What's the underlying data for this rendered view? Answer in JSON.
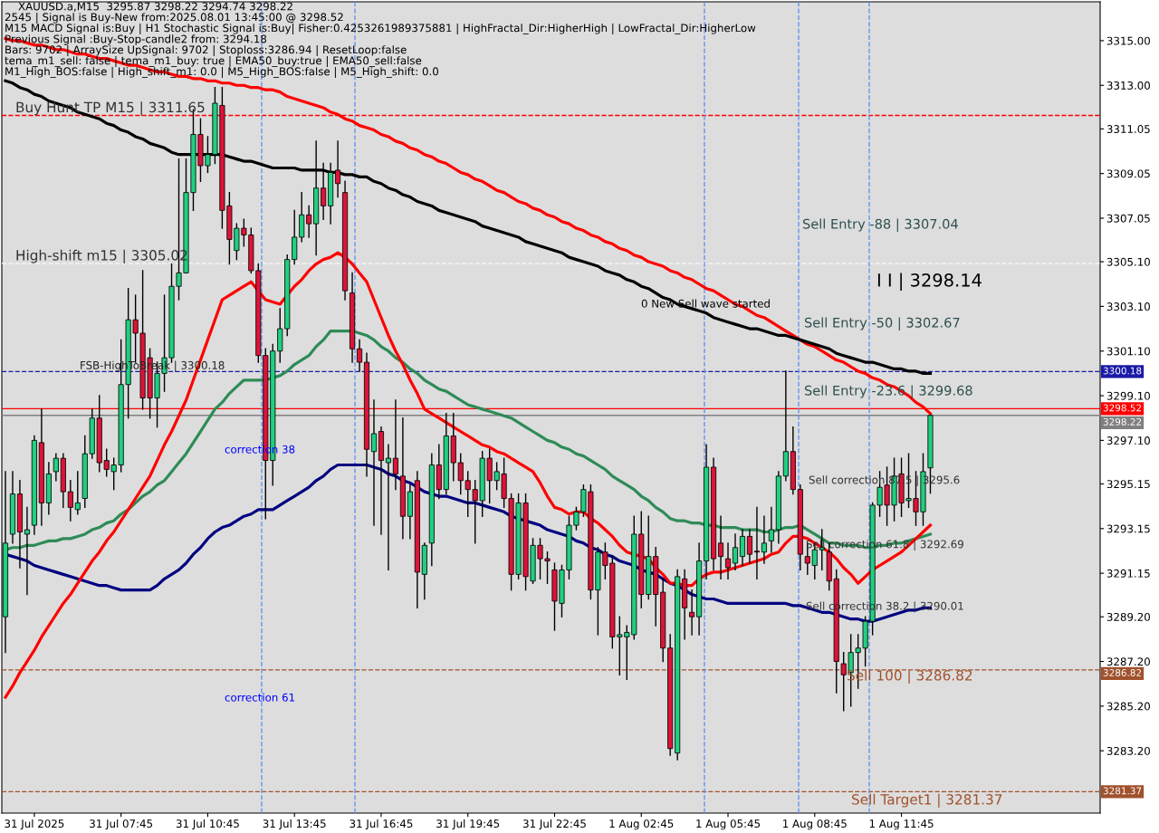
{
  "chart_data": {
    "type": "candlestick",
    "title": "XAUUSD.a,M15  3295.87 3298.22 3294.74 3298.22",
    "categories": [
      null,
      null,
      null,
      null,
      "31 Jul 2025",
      null,
      null,
      null,
      null,
      null,
      null,
      null,
      null,
      null,
      null,
      null,
      "31 Jul 07:45",
      null,
      null,
      null,
      null,
      null,
      null,
      null,
      null,
      null,
      null,
      null,
      "31 Jul 10:45",
      null,
      null,
      null,
      null,
      null,
      null,
      null,
      null,
      null,
      null,
      null,
      "31 Jul 13:45",
      null,
      null,
      null,
      null,
      null,
      null,
      null,
      null,
      null,
      null,
      null,
      "31 Jul 16:45",
      null,
      null,
      null,
      null,
      null,
      null,
      null,
      null,
      null,
      null,
      null,
      "31 Jul 19:45",
      null,
      null,
      null,
      null,
      null,
      null,
      null,
      null,
      null,
      null,
      null,
      "31 Jul 22:45",
      null,
      null,
      null,
      null,
      null,
      null,
      null,
      null,
      null,
      null,
      null,
      "1 Aug 02:45",
      null,
      null,
      null,
      null,
      null,
      null,
      null,
      null,
      null,
      null,
      null,
      "1 Aug 05:45",
      null,
      null,
      null,
      null,
      null,
      null,
      null,
      null,
      null,
      null,
      null,
      "1 Aug 08:45",
      null,
      null,
      null,
      null,
      null,
      null,
      null,
      null,
      null,
      null,
      null,
      "1 Aug 11:45",
      null,
      null,
      null,
      null,
      null,
      null,
      null,
      null,
      null,
      null,
      null,
      null,
      null,
      null,
      null,
      null,
      null,
      null,
      null,
      null,
      null,
      null,
      null,
      null,
      null,
      null,
      null
    ],
    "ohlc": [
      [
        3289.2,
        3295.7,
        3287.6,
        3292.5
      ],
      [
        3292.9,
        3295.7,
        3292.5,
        3294.7
      ],
      [
        3294.7,
        3295.3,
        3291.4,
        3293.0
      ],
      [
        3292.9,
        3294.1,
        3290.2,
        3293.1
      ],
      [
        3293.3,
        3297.3,
        3292.9,
        3297.1
      ],
      [
        3297.0,
        3298.5,
        3293.3,
        3294.3
      ],
      [
        3294.3,
        3296.1,
        3293.8,
        3295.6
      ],
      [
        3295.7,
        3296.5,
        3295.3,
        3296.3
      ],
      [
        3296.3,
        3296.5,
        3294.1,
        3294.8
      ],
      [
        3294.8,
        3295.3,
        3293.5,
        3294.1
      ],
      [
        3294.0,
        3295.7,
        3293.8,
        3294.3
      ],
      [
        3294.5,
        3297.3,
        3294.1,
        3296.5
      ],
      [
        3296.5,
        3298.5,
        3296.3,
        3298.1
      ],
      [
        3298.1,
        3299.1,
        3295.7,
        3296.1
      ],
      [
        3296.2,
        3296.7,
        3295.5,
        3295.8
      ],
      [
        3295.7,
        3296.3,
        3294.9,
        3296.0
      ],
      [
        3296.0,
        3301.6,
        3295.7,
        3299.6
      ],
      [
        3299.6,
        3303.9,
        3298.1,
        3302.5
      ],
      [
        3302.5,
        3303.6,
        3300.6,
        3301.9
      ],
      [
        3301.9,
        3304.7,
        3298.5,
        3299.0
      ],
      [
        3300.8,
        3301.2,
        3298.1,
        3299.0
      ],
      [
        3299.0,
        3300.6,
        3297.7,
        3300.1
      ],
      [
        3300.1,
        3303.6,
        3299.3,
        3300.8
      ],
      [
        3300.8,
        3305.0,
        3300.6,
        3304.0
      ],
      [
        3304.0,
        3309.7,
        3303.4,
        3304.6
      ],
      [
        3304.6,
        3309.7,
        3304.6,
        3308.2
      ],
      [
        3308.2,
        3311.9,
        3307.4,
        3310.8
      ],
      [
        3310.8,
        3311.5,
        3308.7,
        3309.4
      ],
      [
        3309.4,
        3310.7,
        3309.1,
        3309.9
      ],
      [
        3309.9,
        3312.9,
        3309.5,
        3312.2
      ],
      [
        3312.1,
        3312.9,
        3306.6,
        3307.4
      ],
      [
        3307.6,
        3308.2,
        3305.0,
        3306.1
      ],
      [
        3305.6,
        3306.8,
        3305.2,
        3306.6
      ],
      [
        3306.6,
        3307.0,
        3305.8,
        3306.3
      ],
      [
        3306.3,
        3306.6,
        3304.6,
        3304.7
      ],
      [
        3304.7,
        3305.0,
        3300.6,
        3300.9
      ],
      [
        3300.9,
        3301.2,
        3293.6,
        3296.2
      ],
      [
        3296.2,
        3301.4,
        3295.1,
        3301.1
      ],
      [
        3301.1,
        3303.0,
        3300.6,
        3302.1
      ],
      [
        3302.1,
        3305.4,
        3301.8,
        3305.2
      ],
      [
        3305.2,
        3307.4,
        3305.0,
        3306.2
      ],
      [
        3306.2,
        3308.2,
        3306.0,
        3307.2
      ],
      [
        3307.2,
        3307.6,
        3306.2,
        3306.8
      ],
      [
        3306.8,
        3310.5,
        3305.4,
        3308.4
      ],
      [
        3308.4,
        3309.5,
        3307.0,
        3307.6
      ],
      [
        3307.6,
        3309.5,
        3306.8,
        3309.1
      ],
      [
        3309.2,
        3310.5,
        3308.0,
        3308.6
      ],
      [
        3308.2,
        3308.7,
        3303.4,
        3303.8
      ],
      [
        3303.7,
        3304.6,
        3300.6,
        3301.2
      ],
      [
        3301.2,
        3301.6,
        3300.2,
        3300.6
      ],
      [
        3300.6,
        3301.0,
        3295.5,
        3296.7
      ],
      [
        3296.6,
        3298.9,
        3293.3,
        3297.4
      ],
      [
        3297.5,
        3297.7,
        3292.9,
        3296.2
      ],
      [
        3296.1,
        3296.9,
        3291.3,
        3296.3
      ],
      [
        3296.3,
        3298.9,
        3294.9,
        3295.6
      ],
      [
        3295.5,
        3298.1,
        3292.7,
        3293.7
      ],
      [
        3293.7,
        3295.1,
        3292.7,
        3294.8
      ],
      [
        3295.3,
        3295.7,
        3289.6,
        3291.2
      ],
      [
        3291.1,
        3292.5,
        3290.0,
        3292.4
      ],
      [
        3292.5,
        3296.5,
        3291.5,
        3296.0
      ],
      [
        3296.0,
        3296.9,
        3294.5,
        3294.9
      ],
      [
        3294.9,
        3298.3,
        3294.7,
        3297.3
      ],
      [
        3297.3,
        3298.3,
        3295.3,
        3296.1
      ],
      [
        3296.1,
        3296.5,
        3294.7,
        3295.3
      ],
      [
        3295.3,
        3295.7,
        3293.7,
        3294.9
      ],
      [
        3294.9,
        3295.3,
        3292.5,
        3294.4
      ],
      [
        3294.4,
        3296.6,
        3293.7,
        3296.3
      ],
      [
        3296.3,
        3296.7,
        3294.3,
        3295.3
      ],
      [
        3295.3,
        3296.1,
        3294.9,
        3295.7
      ],
      [
        3295.6,
        3296.3,
        3294.1,
        3294.5
      ],
      [
        3294.5,
        3294.7,
        3290.4,
        3291.1
      ],
      [
        3291.1,
        3294.7,
        3290.9,
        3294.3
      ],
      [
        3294.3,
        3294.7,
        3290.4,
        3291.0
      ],
      [
        3290.8,
        3292.7,
        3290.7,
        3292.4
      ],
      [
        3292.4,
        3292.7,
        3290.9,
        3291.8
      ],
      [
        3291.8,
        3292.1,
        3290.7,
        3291.7
      ],
      [
        3291.3,
        3291.6,
        3288.6,
        3289.9
      ],
      [
        3289.8,
        3291.5,
        3289.2,
        3291.3
      ],
      [
        3291.3,
        3293.7,
        3290.9,
        3293.3
      ],
      [
        3293.3,
        3294.1,
        3293.1,
        3293.9
      ],
      [
        3293.9,
        3295.1,
        3293.7,
        3294.9
      ],
      [
        3294.8,
        3295.1,
        3290.0,
        3290.4
      ],
      [
        3290.4,
        3292.3,
        3288.4,
        3292.1
      ],
      [
        3292.1,
        3292.5,
        3290.9,
        3291.5
      ],
      [
        3291.6,
        3291.9,
        3287.8,
        3288.3
      ],
      [
        3288.3,
        3289.2,
        3286.6,
        3288.4
      ],
      [
        3288.3,
        3288.8,
        3286.4,
        3288.5
      ],
      [
        3288.4,
        3293.7,
        3288.2,
        3292.9
      ],
      [
        3292.9,
        3293.9,
        3289.6,
        3290.2
      ],
      [
        3290.2,
        3293.7,
        3290.0,
        3291.9
      ],
      [
        3291.9,
        3292.3,
        3288.8,
        3290.2
      ],
      [
        3290.3,
        3290.9,
        3287.2,
        3287.8
      ],
      [
        3287.8,
        3288.4,
        3283.0,
        3283.3
      ],
      [
        3283.1,
        3291.3,
        3282.8,
        3291.0
      ],
      [
        3290.9,
        3291.3,
        3288.2,
        3289.6
      ],
      [
        3289.4,
        3290.4,
        3288.4,
        3289.2
      ],
      [
        3289.2,
        3292.5,
        3288.4,
        3291.7
      ],
      [
        3291.7,
        3296.9,
        3290.9,
        3295.9
      ],
      [
        3295.9,
        3296.3,
        3291.3,
        3291.8
      ],
      [
        3292.5,
        3293.7,
        3290.9,
        3291.9
      ],
      [
        3291.8,
        3292.5,
        3290.9,
        3291.4
      ],
      [
        3291.6,
        3292.9,
        3291.3,
        3292.3
      ],
      [
        3291.9,
        3293.1,
        3291.5,
        3292.8
      ],
      [
        3292.8,
        3293.1,
        3291.6,
        3292.0
      ],
      [
        3292.1,
        3294.1,
        3290.9,
        3292.1
      ],
      [
        3292.1,
        3293.7,
        3291.6,
        3292.5
      ],
      [
        3292.6,
        3294.1,
        3292.1,
        3293.1
      ],
      [
        3293.1,
        3295.7,
        3292.5,
        3295.5
      ],
      [
        3295.5,
        3300.2,
        3295.3,
        3296.6
      ],
      [
        3296.6,
        3297.7,
        3294.7,
        3294.9
      ],
      [
        3294.9,
        3295.1,
        3291.3,
        3292.0
      ],
      [
        3291.9,
        3292.5,
        3291.1,
        3291.6
      ],
      [
        3291.5,
        3292.5,
        3290.9,
        3292.2
      ],
      [
        3292.2,
        3293.1,
        3291.3,
        3292.3
      ],
      [
        3292.1,
        3292.5,
        3290.4,
        3290.8
      ],
      [
        3290.9,
        3291.3,
        3285.8,
        3287.2
      ],
      [
        3287.1,
        3287.6,
        3285.0,
        3286.6
      ],
      [
        3286.7,
        3288.4,
        3285.2,
        3287.6
      ],
      [
        3287.6,
        3288.4,
        3286.0,
        3287.8
      ],
      [
        3287.8,
        3289.2,
        3287.0,
        3289.0
      ],
      [
        3289.0,
        3294.3,
        3288.4,
        3294.2
      ],
      [
        3294.2,
        3295.7,
        3293.7,
        3295.0
      ],
      [
        3295.1,
        3295.9,
        3293.3,
        3294.2
      ],
      [
        3294.2,
        3296.3,
        3293.5,
        3295.5
      ],
      [
        3295.6,
        3296.3,
        3293.7,
        3294.3
      ],
      [
        3294.4,
        3296.5,
        3294.1,
        3294.5
      ],
      [
        3294.5,
        3295.7,
        3293.3,
        3293.9
      ],
      [
        3293.9,
        3296.5,
        3293.3,
        3295.7
      ],
      [
        3295.87,
        3298.22,
        3294.74,
        3298.22
      ],
      null,
      null,
      null,
      null,
      null,
      null,
      null,
      null,
      null,
      null,
      null,
      null,
      null,
      null,
      null,
      null,
      null,
      null,
      null,
      null,
      null,
      null,
      null
    ],
    "colors": [
      "#20d080",
      "#20d080",
      "#dc1438",
      "#20d080",
      "#20d080",
      "#dc1438",
      "#20d080",
      "#20d080",
      "#dc1438",
      "#dc1438",
      "#20d080",
      "#20d080",
      "#20d080",
      "#dc1438",
      "#dc1438",
      "#20d080",
      "#20d080",
      "#20d080",
      "#dc1438",
      "#dc1438",
      "#dc1438",
      "#20d080",
      "#20d080",
      "#20d080",
      "#20d080",
      "#20d080",
      "#20d080",
      "#dc1438",
      "#20d080",
      "#20d080",
      "#dc1438",
      "#dc1438",
      "#20d080",
      "#dc1438",
      "#dc1438",
      "#dc1438",
      "#dc1438",
      "#20d080",
      "#20d080",
      "#20d080",
      "#20d080",
      "#20d080",
      "#dc1438",
      "#20d080",
      "#dc1438",
      "#20d080",
      "#dc1438",
      "#dc1438",
      "#dc1438",
      "#dc1438",
      "#dc1438",
      "#20d080",
      "#dc1438",
      "#20d080",
      "#dc1438",
      "#dc1438",
      "#20d080",
      "#dc1438",
      "#20d080",
      "#20d080",
      "#dc1438",
      "#20d080",
      "#dc1438",
      "#dc1438",
      "#dc1438",
      "#dc1438",
      "#20d080",
      "#dc1438",
      "#20d080",
      "#dc1438",
      "#dc1438",
      "#20d080",
      "#dc1438",
      "#20d080",
      "#dc1438",
      "#dc1438",
      "#dc1438",
      "#20d080",
      "#20d080",
      "#20d080",
      "#20d080",
      "#dc1438",
      "#20d080",
      "#dc1438",
      "#dc1438",
      "#20d080",
      "#20d080",
      "#20d080",
      "#dc1438",
      "#20d080",
      "#dc1438",
      "#dc1438",
      "#dc1438",
      "#20d080",
      "#dc1438",
      "#dc1438",
      "#20d080",
      "#20d080",
      "#dc1438",
      "#dc1438",
      "#dc1438",
      "#20d080",
      "#20d080",
      "#dc1438",
      "#dc1438",
      "#20d080",
      "#20d080",
      "#20d080",
      "#20d080",
      "#dc1438",
      "#dc1438",
      "#dc1438",
      "#20d080",
      "#20d080",
      "#dc1438",
      "#dc1438",
      "#dc1438",
      "#20d080",
      "#20d080",
      "#20d080",
      "#20d080",
      "#20d080",
      "#dc1438",
      "#20d080",
      "#dc1438",
      "#20d080",
      "#dc1438",
      "#20d080",
      "#20d080",
      null,
      null,
      null,
      null,
      null,
      null,
      null,
      null,
      null,
      null,
      null,
      null,
      null,
      null,
      null,
      null,
      null,
      null,
      null,
      null,
      null,
      null,
      null
    ],
    "series": [
      {
        "type": "line",
        "color": "#ff0000",
        "values": [
          3315.1,
          3315.0,
          3315.0,
          3314.9,
          3314.8,
          3314.8,
          3314.7,
          3314.6,
          3314.6,
          3314.5,
          3314.4,
          3314.4,
          3314.3,
          3314.2,
          3314.2,
          3314.1,
          3314.0,
          3313.9,
          3313.9,
          3313.8,
          3313.7,
          3313.6,
          3313.6,
          3313.5,
          3313.4,
          3313.4,
          3313.3,
          3313.3,
          3313.2,
          3313.2,
          3313.1,
          3313.1,
          3313.0,
          3313.0,
          3312.9,
          3312.9,
          3312.8,
          3312.8,
          3312.7,
          3312.5,
          3312.4,
          3312.3,
          3312.2,
          3312.1,
          3312.0,
          3311.8,
          3311.7,
          3311.5,
          3311.4,
          3311.2,
          3311.1,
          3311.0,
          3310.8,
          3310.7,
          3310.5,
          3310.4,
          3310.2,
          3310.1,
          3309.9,
          3309.8,
          3309.6,
          3309.5,
          3309.3,
          3309.1,
          3309.0,
          3308.8,
          3308.7,
          3308.5,
          3308.3,
          3308.2,
          3308.0,
          3307.8,
          3307.7,
          3307.5,
          3307.4,
          3307.2,
          3307.1,
          3306.9,
          3306.8,
          3306.6,
          3306.5,
          3306.3,
          3306.2,
          3306.0,
          3305.9,
          3305.7,
          3305.6,
          3305.4,
          3305.3,
          3305.1,
          3305.0,
          3304.9,
          3304.7,
          3304.6,
          3304.4,
          3304.3,
          3304.1,
          3303.9,
          3303.8,
          3303.6,
          3303.4,
          3303.2,
          3303.1,
          3302.9,
          3302.7,
          3302.6,
          3302.4,
          3302.2,
          3302.0,
          3301.8,
          3301.6,
          3301.4,
          3301.3,
          3301.1,
          3300.9,
          3300.7,
          3300.6,
          3300.4,
          3300.2,
          3300.1,
          3299.9,
          3299.8,
          3299.6,
          3299.5,
          3299.3,
          3299.1,
          3298.8,
          3298.6,
          3298.3,
          null,
          null,
          null,
          null,
          null,
          null,
          null,
          null,
          null,
          null,
          null,
          null,
          null,
          null,
          null,
          null,
          null,
          null,
          null,
          null,
          null,
          null,
          null
        ]
      },
      {
        "type": "line",
        "color": "#000000",
        "values": [
          3313.2,
          3313.1,
          3312.9,
          3312.8,
          3312.6,
          3312.5,
          3312.3,
          3312.2,
          3312.1,
          3312.0,
          3311.8,
          3311.7,
          3311.6,
          3311.5,
          3311.3,
          3311.2,
          3311.0,
          3310.9,
          3310.7,
          3310.6,
          3310.4,
          3310.3,
          3310.2,
          3310.0,
          3309.9,
          3309.9,
          3309.9,
          3309.9,
          3309.9,
          3309.9,
          3309.9,
          3309.8,
          3309.7,
          3309.6,
          3309.6,
          3309.5,
          3309.4,
          3309.3,
          3309.3,
          3309.3,
          3309.3,
          3309.2,
          3309.2,
          3309.2,
          3309.2,
          3309.1,
          3309.1,
          3309.0,
          3309.0,
          3308.9,
          3308.9,
          3308.7,
          3308.6,
          3308.4,
          3308.3,
          3308.1,
          3308.0,
          3307.8,
          3307.7,
          3307.6,
          3307.4,
          3307.3,
          3307.2,
          3307.1,
          3307.0,
          3306.9,
          3306.7,
          3306.6,
          3306.5,
          3306.4,
          3306.3,
          3306.2,
          3306.0,
          3305.9,
          3305.8,
          3305.7,
          3305.6,
          3305.5,
          3305.3,
          3305.2,
          3305.1,
          3305.0,
          3304.9,
          3304.7,
          3304.6,
          3304.5,
          3304.3,
          3304.2,
          3304.0,
          3303.9,
          3303.7,
          3303.5,
          3303.4,
          3303.2,
          3303.1,
          3303.0,
          3302.9,
          3302.8,
          3302.6,
          3302.5,
          3302.4,
          3302.3,
          3302.2,
          3302.1,
          3302.1,
          3302.0,
          3301.9,
          3301.8,
          3301.8,
          3301.7,
          3301.6,
          3301.5,
          3301.4,
          3301.3,
          3301.2,
          3301.0,
          3300.9,
          3300.8,
          3300.7,
          3300.6,
          3300.6,
          3300.5,
          3300.4,
          3300.3,
          3300.3,
          3300.2,
          3300.2,
          3300.1,
          3300.1,
          null,
          null,
          null,
          null,
          null,
          null,
          null,
          null,
          null,
          null,
          null,
          null,
          null,
          null,
          null,
          null,
          null,
          null,
          null,
          null,
          null,
          null,
          null
        ]
      },
      {
        "type": "line",
        "color": "#2e8b57",
        "values": [
          3292.2,
          3292.3,
          3292.3,
          3292.4,
          3292.4,
          3292.5,
          3292.6,
          3292.6,
          3292.7,
          3292.7,
          3292.8,
          3292.9,
          3293.1,
          3293.2,
          3293.4,
          3293.5,
          3293.8,
          3294.0,
          3294.3,
          3294.6,
          3294.8,
          3295.1,
          3295.3,
          3295.7,
          3296.1,
          3296.5,
          3297.0,
          3297.5,
          3298.0,
          3298.5,
          3298.8,
          3299.2,
          3299.5,
          3299.8,
          3299.8,
          3299.8,
          3299.8,
          3299.9,
          3300.0,
          3300.2,
          3300.5,
          3300.7,
          3300.9,
          3301.3,
          3301.6,
          3302.0,
          3302.0,
          3302.0,
          3302.0,
          3301.9,
          3301.8,
          3301.6,
          3301.3,
          3301.1,
          3300.8,
          3300.6,
          3300.3,
          3300.1,
          3299.8,
          3299.6,
          3299.4,
          3299.3,
          3299.1,
          3298.9,
          3298.7,
          3298.6,
          3298.5,
          3298.4,
          3298.3,
          3298.2,
          3298.1,
          3297.9,
          3297.7,
          3297.5,
          3297.3,
          3297.1,
          3297.0,
          3296.8,
          3296.7,
          3296.5,
          3296.4,
          3296.2,
          3296.0,
          3295.8,
          3295.5,
          3295.3,
          3295.1,
          3294.9,
          3294.6,
          3294.4,
          3294.1,
          3293.9,
          3293.6,
          3293.5,
          3293.5,
          3293.4,
          3293.4,
          3293.3,
          3293.3,
          3293.2,
          3293.2,
          3293.2,
          3293.1,
          3293.1,
          3293.1,
          3293.0,
          3293.0,
          3293.1,
          3293.2,
          3293.2,
          3293.3,
          3293.1,
          3292.9,
          3292.7,
          3292.5,
          3292.5,
          3292.4,
          3292.4,
          3292.4,
          3292.3,
          3292.3,
          3292.4,
          3292.4,
          3292.5,
          3292.5,
          3292.6,
          3292.7,
          3292.8,
          3292.9,
          null,
          null,
          null,
          null,
          null,
          null,
          null,
          null,
          null,
          null,
          null,
          null,
          null,
          null,
          null,
          null,
          null,
          null,
          null,
          null,
          null,
          null,
          null
        ]
      },
      {
        "type": "line",
        "color": "#000080",
        "values": [
          3292.0,
          3291.9,
          3291.8,
          3291.7,
          3291.5,
          3291.4,
          3291.3,
          3291.2,
          3291.1,
          3291.0,
          3290.9,
          3290.8,
          3290.7,
          3290.6,
          3290.6,
          3290.5,
          3290.4,
          3290.4,
          3290.4,
          3290.4,
          3290.4,
          3290.6,
          3290.9,
          3291.1,
          3291.3,
          3291.6,
          3292.0,
          3292.3,
          3292.7,
          3293.0,
          3293.2,
          3293.3,
          3293.5,
          3293.7,
          3293.8,
          3294.0,
          3294.0,
          3294.0,
          3294.2,
          3294.4,
          3294.6,
          3294.8,
          3295.0,
          3295.3,
          3295.5,
          3295.8,
          3296.0,
          3296.0,
          3296.0,
          3296.0,
          3296.0,
          3295.9,
          3295.8,
          3295.6,
          3295.5,
          3295.3,
          3295.2,
          3295.0,
          3294.8,
          3294.7,
          3294.6,
          3294.6,
          3294.5,
          3294.4,
          3294.3,
          3294.3,
          3294.2,
          3294.1,
          3294.0,
          3293.9,
          3293.7,
          3293.6,
          3293.5,
          3293.4,
          3293.3,
          3293.1,
          3293.0,
          3292.9,
          3292.8,
          3292.6,
          3292.5,
          3292.3,
          3292.2,
          3292.0,
          3291.9,
          3291.7,
          3291.6,
          3291.5,
          3291.3,
          3291.2,
          3291.1,
          3290.9,
          3290.7,
          3290.6,
          3290.4,
          3290.2,
          3290.1,
          3290.0,
          3290.0,
          3289.9,
          3289.8,
          3289.8,
          3289.8,
          3289.8,
          3289.8,
          3289.8,
          3289.8,
          3289.8,
          3289.8,
          3289.7,
          3289.7,
          3289.6,
          3289.5,
          3289.4,
          3289.4,
          3289.3,
          3289.2,
          3289.1,
          3289.1,
          3289.0,
          3289.0,
          3289.1,
          3289.2,
          3289.3,
          3289.4,
          3289.5,
          3289.5,
          3289.6,
          3289.6,
          null,
          null,
          null,
          null,
          null,
          null,
          null,
          null,
          null,
          null,
          null,
          null,
          null,
          null,
          null,
          null,
          null,
          null,
          null,
          null,
          null,
          null,
          null
        ]
      },
      {
        "type": "line",
        "color": "#ff0000",
        "values": [
          3285.6,
          3286.1,
          3286.7,
          3287.2,
          3287.7,
          3288.3,
          3288.8,
          3289.3,
          3289.8,
          3290.2,
          3290.7,
          3291.2,
          3291.7,
          3292.1,
          3292.6,
          3293.0,
          3293.5,
          3294.0,
          3294.5,
          3295.0,
          3295.5,
          3296.2,
          3296.9,
          3297.5,
          3298.2,
          3298.9,
          3299.8,
          3300.7,
          3301.6,
          3302.5,
          3303.4,
          3303.6,
          3303.8,
          3304.0,
          3304.2,
          3303.8,
          3303.4,
          3303.3,
          3303.2,
          3303.6,
          3304.0,
          3304.3,
          3304.7,
          3305.0,
          3305.2,
          3305.3,
          3305.5,
          3305.3,
          3305.0,
          3304.6,
          3304.2,
          3303.4,
          3302.6,
          3301.8,
          3301.1,
          3300.5,
          3299.8,
          3299.2,
          3298.5,
          3298.3,
          3298.1,
          3297.9,
          3297.7,
          3297.5,
          3297.3,
          3297.1,
          3296.9,
          3296.8,
          3296.6,
          3296.5,
          3296.3,
          3296.1,
          3295.9,
          3295.7,
          3295.2,
          3294.6,
          3294.1,
          3294.0,
          3293.8,
          3293.9,
          3293.9,
          3293.6,
          3293.4,
          3293.1,
          3292.8,
          3292.4,
          3292.1,
          3292.0,
          3291.9,
          3291.8,
          3291.4,
          3291.1,
          3290.7,
          3290.7,
          3290.6,
          3290.6,
          3290.9,
          3291.1,
          3291.2,
          3291.2,
          3291.3,
          3291.4,
          3291.5,
          3291.6,
          3291.7,
          3291.8,
          3292.0,
          3292.1,
          3292.5,
          3292.8,
          3292.8,
          3292.7,
          3292.5,
          3292.3,
          3292.1,
          3291.8,
          3291.4,
          3291.1,
          3290.7,
          3291.0,
          3291.3,
          3291.5,
          3291.7,
          3291.9,
          3292.1,
          3292.4,
          3292.7,
          3293.0,
          3293.3,
          null,
          null,
          null,
          null,
          null,
          null,
          null,
          null,
          null,
          null,
          null,
          null,
          null,
          null,
          null,
          null,
          null,
          null,
          null,
          null,
          null,
          null,
          null
        ]
      }
    ],
    "ylim": [
      3280.41,
      3316.74
    ],
    "yticks": [
      {
        "value": 3315,
        "label": "3315.00"
      },
      {
        "value": 3313,
        "label": "3313.00"
      },
      {
        "value": 3311.05,
        "label": "3311.05"
      },
      {
        "value": 3309.05,
        "label": "3309.05"
      },
      {
        "value": 3307.05,
        "label": "3307.05"
      },
      {
        "value": 3305.1,
        "label": "3305.10"
      },
      {
        "value": 3303.1,
        "label": "3303.10"
      },
      {
        "value": 3301.1,
        "label": "3301.10"
      },
      {
        "value": 3299.1,
        "label": "3299.10"
      },
      {
        "value": 3297.1,
        "label": "3297.10"
      },
      {
        "value": 3295.15,
        "label": "3295.15"
      },
      {
        "value": 3293.15,
        "label": "3293.15"
      },
      {
        "value": 3291.15,
        "label": "3291.15"
      },
      {
        "value": 3289.2,
        "label": "3289.20"
      },
      {
        "value": 3287.2,
        "label": "3287.20"
      },
      {
        "value": 3285.2,
        "label": "3285.20"
      },
      {
        "value": 3283.2,
        "label": "3283.20"
      }
    ],
    "ref_lines": [
      {
        "axis": "y",
        "value": 3311.65,
        "color": "#ff0000",
        "line_style": "dashed"
      },
      {
        "axis": "y",
        "value": 3305.02,
        "color": "#f5f5f5",
        "line_style": "dashed"
      },
      {
        "axis": "y",
        "value": 3300.18,
        "label": "3300.18",
        "color": "#1a1aa6",
        "line_style": "dashed"
      },
      {
        "axis": "y",
        "value": 3298.52,
        "label": "3298.52",
        "color": "#ff0000",
        "line_style": "solid"
      },
      {
        "axis": "y",
        "value": 3298.22,
        "label": "3298.22",
        "color": "#808080",
        "line_style": "solid"
      },
      {
        "axis": "y",
        "value": 3286.82,
        "label": "3286.82",
        "color": "#a0522d",
        "line_style": "dashed"
      },
      {
        "axis": "y",
        "value": 3281.37,
        "label": "3281.37",
        "color": "#a0522d",
        "line_style": "dashed"
      }
    ],
    "annotations": [
      "2545 | Signal is Buy-New from:2025.08.01 13:45:00 @ 3298.52",
      "M15 MACD Signal is:Buy | H1 Stochastic Signal is:Buy| Fisher:0.4253261989375881 | HighFractal_Dir:HigherHigh | LowFractal_Dir:HigherLow",
      "Previous Signal :Buy-Stop-candle2 from: 3294.18",
      "Bars: 9702 | ArraySize UpSignal: 9702 | Stoploss:3286.94 | ResetLoop:false",
      "tema_m1_sell: false | tema_m1_buy: true | EMA50_buy:true | EMA50_sell:false",
      "M1_High_BOS:false | High_shift_m1: 0.0 | M5_High_BOS:false | M5_High_shift: 0.0",
      {
        "text": "Buy Hunt TP M15 | 3311.65",
        "y": 3311.65
      },
      {
        "text": "High-shift m15 | 3305.02",
        "y": 3305.02
      },
      {
        "text": "FSB-HighToBreak | 3300.18",
        "y": 3300.18
      },
      {
        "text": "Sell correction 38.2 | 3290.01",
        "y": 3289.4
      },
      "I I | 3298.14",
      "Sell Entry -50 | 3302.67",
      "0 New Sell wave started",
      "Sell Entry -23.6 | 3299.68",
      "Sell correction 87.5 | 3295.6",
      "Sell Target1 | 3281.37",
      "correction 38",
      "correction 61",
      "Sell Entry -88 | 3307.04",
      "Sell correction 61.8 | 3292.69",
      "Sell 100 | 3286.82"
    ]
  }
}
